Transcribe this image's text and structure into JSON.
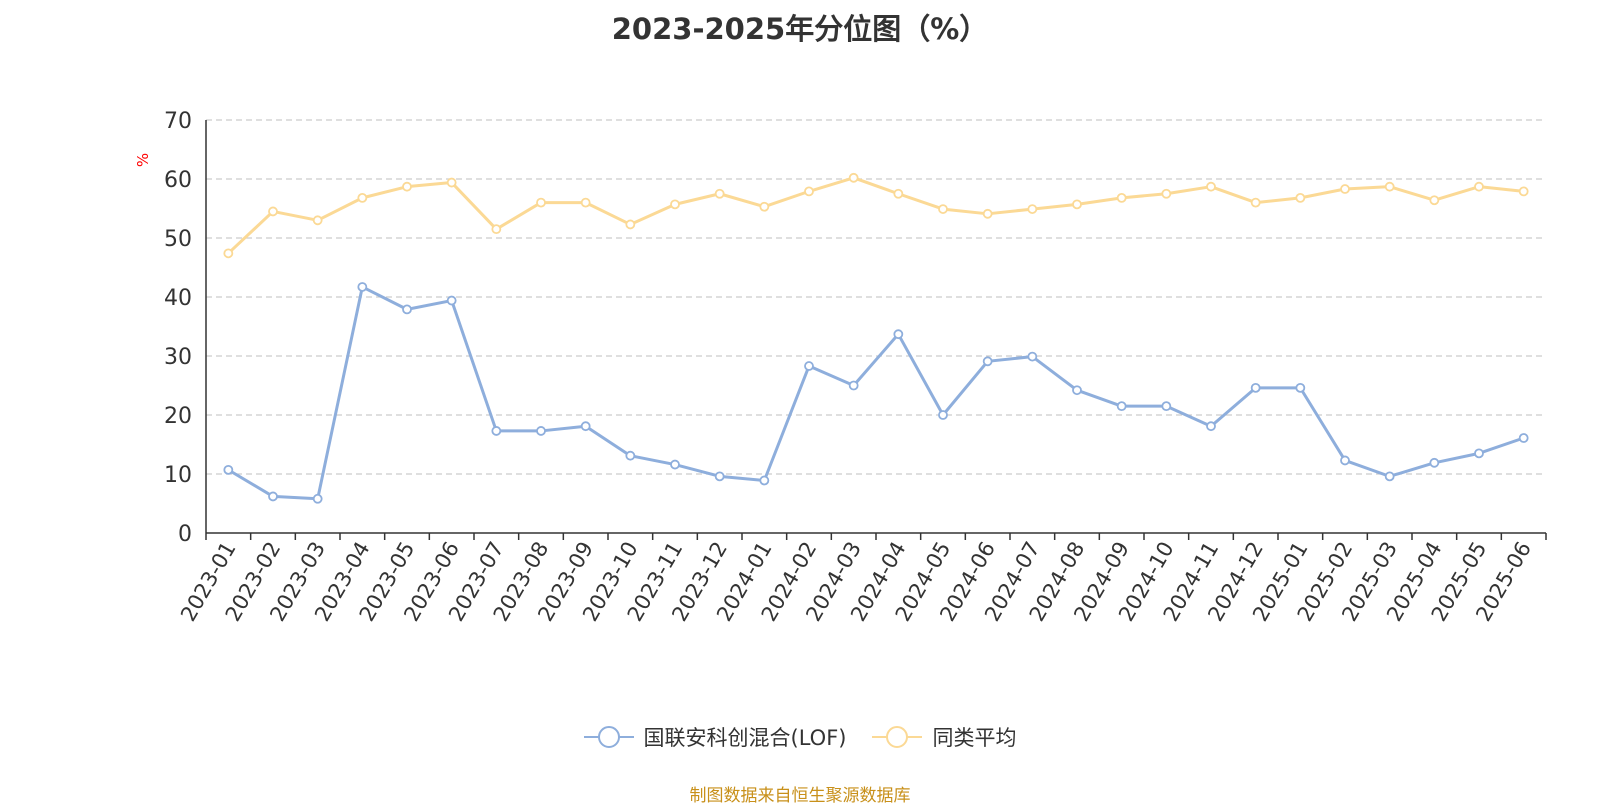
{
  "chart_data": {
    "type": "line",
    "title": "2023-2025年分位图（%）",
    "ylabel": "%",
    "xlabel": "",
    "ylim": [
      0,
      70
    ],
    "yticks": [
      0,
      10,
      20,
      30,
      40,
      50,
      60,
      70
    ],
    "grid": true,
    "legend_position": "bottom",
    "categories": [
      "2023-01",
      "2023-02",
      "2023-03",
      "2023-04",
      "2023-05",
      "2023-06",
      "2023-07",
      "2023-08",
      "2023-09",
      "2023-10",
      "2023-11",
      "2023-12",
      "2024-01",
      "2024-02",
      "2024-03",
      "2024-04",
      "2024-05",
      "2024-06",
      "2024-07",
      "2024-08",
      "2024-09",
      "2024-10",
      "2024-11",
      "2024-12",
      "2025-01",
      "2025-02",
      "2025-03",
      "2025-04",
      "2025-05",
      "2025-06"
    ],
    "series": [
      {
        "name": "国联安科创混合(LOF)",
        "color": "#8eaedc",
        "values": [
          10.7,
          6.2,
          5.8,
          41.7,
          37.9,
          39.4,
          17.3,
          17.3,
          18.1,
          13.1,
          11.6,
          9.6,
          8.9,
          28.3,
          25.0,
          33.7,
          20.0,
          29.1,
          29.9,
          24.2,
          21.5,
          21.5,
          18.1,
          24.6,
          24.6,
          12.3,
          9.6,
          11.9,
          13.5,
          16.1
        ]
      },
      {
        "name": "同类平均",
        "color": "#fbd995",
        "values": [
          47.4,
          54.5,
          53.0,
          56.8,
          58.7,
          59.4,
          51.5,
          56.0,
          56.0,
          52.3,
          55.7,
          57.5,
          55.3,
          57.9,
          60.2,
          57.5,
          54.9,
          54.1,
          54.9,
          55.7,
          56.8,
          57.5,
          58.7,
          56.0,
          56.8,
          58.3,
          58.7,
          56.4,
          58.7,
          57.9
        ]
      }
    ]
  },
  "legend": {
    "items": [
      {
        "label": "国联安科创混合(LOF)"
      },
      {
        "label": "同类平均"
      }
    ]
  },
  "footer": {
    "source": "制图数据来自恒生聚源数据库"
  },
  "colors": {
    "axis": "#333333",
    "grid": "#cccccc",
    "title": "#333333",
    "source": "#c8901a",
    "ylabel": "#ff0000"
  }
}
